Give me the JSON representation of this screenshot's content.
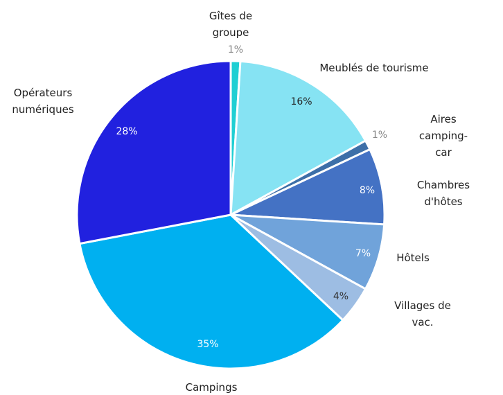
{
  "chart_data": {
    "type": "pie",
    "categories": [
      "Gîtes de\ngroupe",
      "Meublés de tourisme",
      "Aires\ncamping-car",
      "Chambres d'hôtes",
      "Hôtels",
      "Villages de vac.",
      "Campings",
      "Opérateurs\nnumériques"
    ],
    "values": [
      1,
      16,
      1,
      8,
      7,
      4,
      35,
      28
    ],
    "value_labels": [
      "1%",
      "16%",
      "1%",
      "8%",
      "7%",
      "4%",
      "35%",
      "28%"
    ],
    "colors": [
      "#1fcfd3",
      "#86e3f3",
      "#3d6fa8",
      "#4472c4",
      "#70a3da",
      "#9dbde3",
      "#00b0f0",
      "#2121df"
    ]
  }
}
